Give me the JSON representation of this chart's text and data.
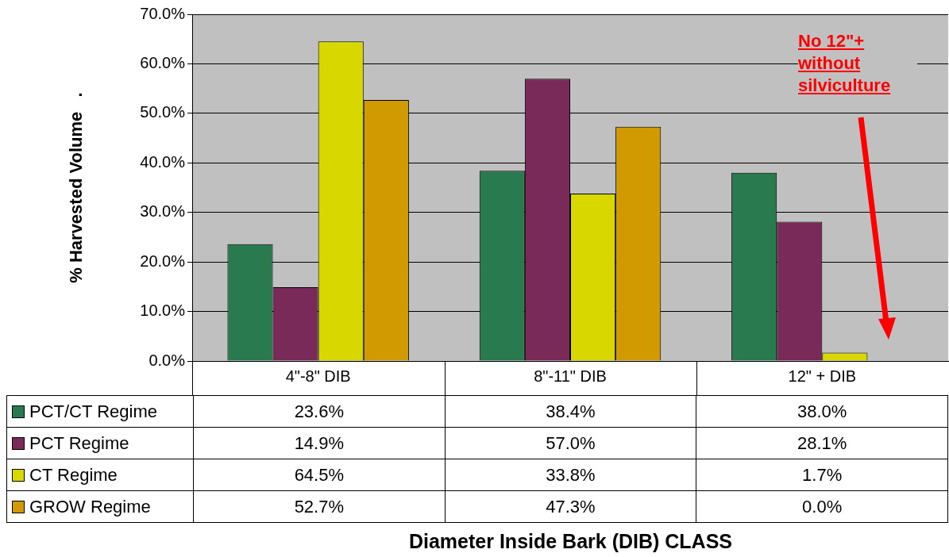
{
  "chart_data": {
    "type": "bar",
    "ylabel": "% Harvested Volume   .",
    "categories": [
      "4\"-8\" DIB",
      "8\"-11\" DIB",
      "12\" + DIB"
    ],
    "series": [
      {
        "name": "PCT/CT Regime",
        "color": "#2a7a50",
        "values": [
          23.6,
          38.4,
          38.0
        ],
        "value_labels": [
          "23.6%",
          "38.4%",
          "38.0%"
        ]
      },
      {
        "name": "PCT Regime",
        "color": "#7a2a58",
        "values": [
          14.9,
          57.0,
          28.1
        ],
        "value_labels": [
          "14.9%",
          "57.0%",
          "28.1%"
        ]
      },
      {
        "name": "CT Regime",
        "color": "#d8d800",
        "values": [
          64.5,
          33.8,
          1.7
        ],
        "value_labels": [
          "64.5%",
          "33.8%",
          "1.7%"
        ]
      },
      {
        "name": "GROW Regime",
        "color": "#d09a00",
        "values": [
          52.7,
          47.3,
          0.0
        ],
        "value_labels": [
          "52.7%",
          "47.3%",
          "0.0%"
        ]
      }
    ],
    "ylim": [
      0,
      70
    ],
    "yticks": [
      {
        "value": 0,
        "label": "0.0%"
      },
      {
        "value": 10,
        "label": "10.0%"
      },
      {
        "value": 20,
        "label": "20.0%"
      },
      {
        "value": 30,
        "label": "30.0%"
      },
      {
        "value": 40,
        "label": "40.0%"
      },
      {
        "value": 50,
        "label": "50.0%"
      },
      {
        "value": 60,
        "label": "60.0%"
      },
      {
        "value": 70,
        "label": "70.0%"
      }
    ],
    "grid": "y",
    "legend": "bottom",
    "annotations": [
      "No 12\"+ without silviculture",
      "Diameter Inside Bark (DIB) CLASS"
    ]
  }
}
